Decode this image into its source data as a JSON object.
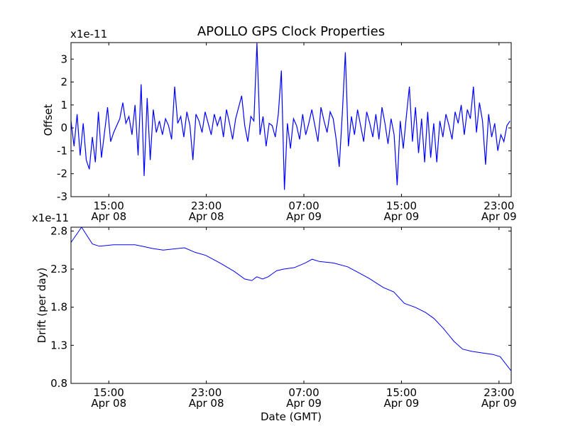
{
  "chart_data": [
    {
      "type": "line",
      "title": "APOLLO GPS Clock Properties",
      "ylabel": "Offset",
      "xlabel": "",
      "offset_text": "x1e-11",
      "xlim_hours_since_apr08": [
        11.9,
        48.0
      ],
      "ylim": [
        -3,
        3.72
      ],
      "yticks": [
        -3,
        -2,
        -1,
        0,
        1,
        2,
        3
      ],
      "ytick_labels": [
        "-3",
        "-2",
        "-1",
        "0",
        "1",
        "2",
        "3"
      ],
      "xticks_hours": [
        15,
        23,
        31,
        39,
        47
      ],
      "xtick_labels": [
        [
          "15:00",
          "Apr 08"
        ],
        [
          "23:00",
          "Apr 08"
        ],
        [
          "07:00",
          "Apr 09"
        ],
        [
          "15:00",
          "Apr 09"
        ],
        [
          "23:00",
          "Apr 09"
        ]
      ],
      "series": [
        {
          "name": "Offset",
          "color": "#0000ff",
          "x_start_hours": 11.9,
          "x_step_hours": 0.25,
          "values": [
            0.3,
            -0.8,
            0.6,
            -1.2,
            0.2,
            -1.4,
            -1.8,
            -0.4,
            -1.5,
            0.7,
            -1.3,
            -0.2,
            0.9,
            -0.6,
            -0.2,
            0.1,
            0.4,
            1.1,
            0.2,
            0.5,
            -0.3,
            1.0,
            -1.2,
            1.9,
            -2.1,
            1.3,
            -1.4,
            0.8,
            -0.2,
            0.3,
            -0.3,
            0.4,
            0.1,
            -0.5,
            1.8,
            0.2,
            0.5,
            -0.4,
            0.7,
            0.1,
            -1.4,
            0.6,
            0.3,
            -0.2,
            0.7,
            0.2,
            -0.3,
            0.6,
            0.1,
            0.5,
            -0.4,
            0.8,
            0.2,
            -0.5,
            0.4,
            0.9,
            1.4,
            0.1,
            -0.6,
            0.5,
            0.3,
            3.7,
            -0.3,
            0.5,
            -0.8,
            0.2,
            0.1,
            -0.4,
            0.6,
            2.5,
            -2.7,
            0.2,
            -0.9,
            0.4,
            0.1,
            -0.5,
            0.6,
            -0.3,
            0.2,
            0.8,
            0.1,
            -0.6,
            0.9,
            0.3,
            -0.2,
            0.7,
            0.4,
            -0.5,
            -1.7,
            0.6,
            3.3,
            -0.8,
            0.5,
            -0.3,
            0.8,
            0.1,
            -0.6,
            0.7,
            0.2,
            -0.4,
            0.6,
            -0.5,
            0.9,
            0.2,
            -0.7,
            0.4,
            -0.3,
            -2.5,
            0.3,
            -0.9,
            0.5,
            1.8,
            -0.6,
            0.9,
            -1.1,
            0.4,
            -1.5,
            0.7,
            -1.3,
            0.2,
            -1.5,
            0.3,
            -0.4,
            0.6,
            0.1,
            -0.5,
            0.7,
            0.2,
            1.0,
            -0.3,
            0.8,
            0.4,
            1.8,
            -0.2,
            1.1,
            0.3,
            -1.6,
            0.6,
            -0.4,
            0.2,
            -1.0,
            -0.3,
            -0.6,
            0.1,
            0.3
          ]
        }
      ]
    },
    {
      "type": "line",
      "ylabel": "Drift (per day)",
      "xlabel": "Date (GMT)",
      "offset_text": "x1e-11",
      "xlim_hours_since_apr08": [
        11.9,
        48.0
      ],
      "ylim": [
        0.8,
        2.85
      ],
      "yticks": [
        0.8,
        1.3,
        1.8,
        2.3,
        2.8
      ],
      "ytick_labels": [
        "0.8",
        "1.3",
        "1.8",
        "2.3",
        "2.8"
      ],
      "xticks_hours": [
        15,
        23,
        31,
        39,
        47
      ],
      "xtick_labels": [
        [
          "15:00",
          "Apr 08"
        ],
        [
          "23:00",
          "Apr 08"
        ],
        [
          "07:00",
          "Apr 09"
        ],
        [
          "15:00",
          "Apr 09"
        ],
        [
          "23:00",
          "Apr 09"
        ]
      ],
      "series": [
        {
          "name": "Drift",
          "color": "#0000ff",
          "x_hours": [
            11.9,
            12.77,
            13.65,
            14.23,
            15.39,
            17.14,
            17.72,
            18.59,
            19.46,
            21.21,
            22.08,
            22.95,
            24.12,
            25.28,
            26.15,
            26.73,
            27.14,
            27.61,
            28.07,
            28.77,
            29.35,
            30.22,
            31.1,
            31.68,
            32.26,
            33.42,
            34.59,
            35.17,
            36.33,
            37.5,
            38.37,
            39.24,
            40.11,
            40.99,
            41.68,
            42.44,
            43.32,
            44.01,
            44.77,
            45.64,
            46.51,
            47.1,
            47.97
          ],
          "values": [
            2.65,
            2.85,
            2.63,
            2.6,
            2.62,
            2.62,
            2.6,
            2.57,
            2.55,
            2.58,
            2.52,
            2.48,
            2.38,
            2.27,
            2.17,
            2.15,
            2.2,
            2.17,
            2.2,
            2.28,
            2.3,
            2.32,
            2.38,
            2.43,
            2.4,
            2.38,
            2.33,
            2.28,
            2.18,
            2.06,
            2.0,
            1.85,
            1.8,
            1.73,
            1.65,
            1.52,
            1.35,
            1.25,
            1.22,
            1.2,
            1.18,
            1.15,
            0.97
          ]
        }
      ]
    }
  ]
}
